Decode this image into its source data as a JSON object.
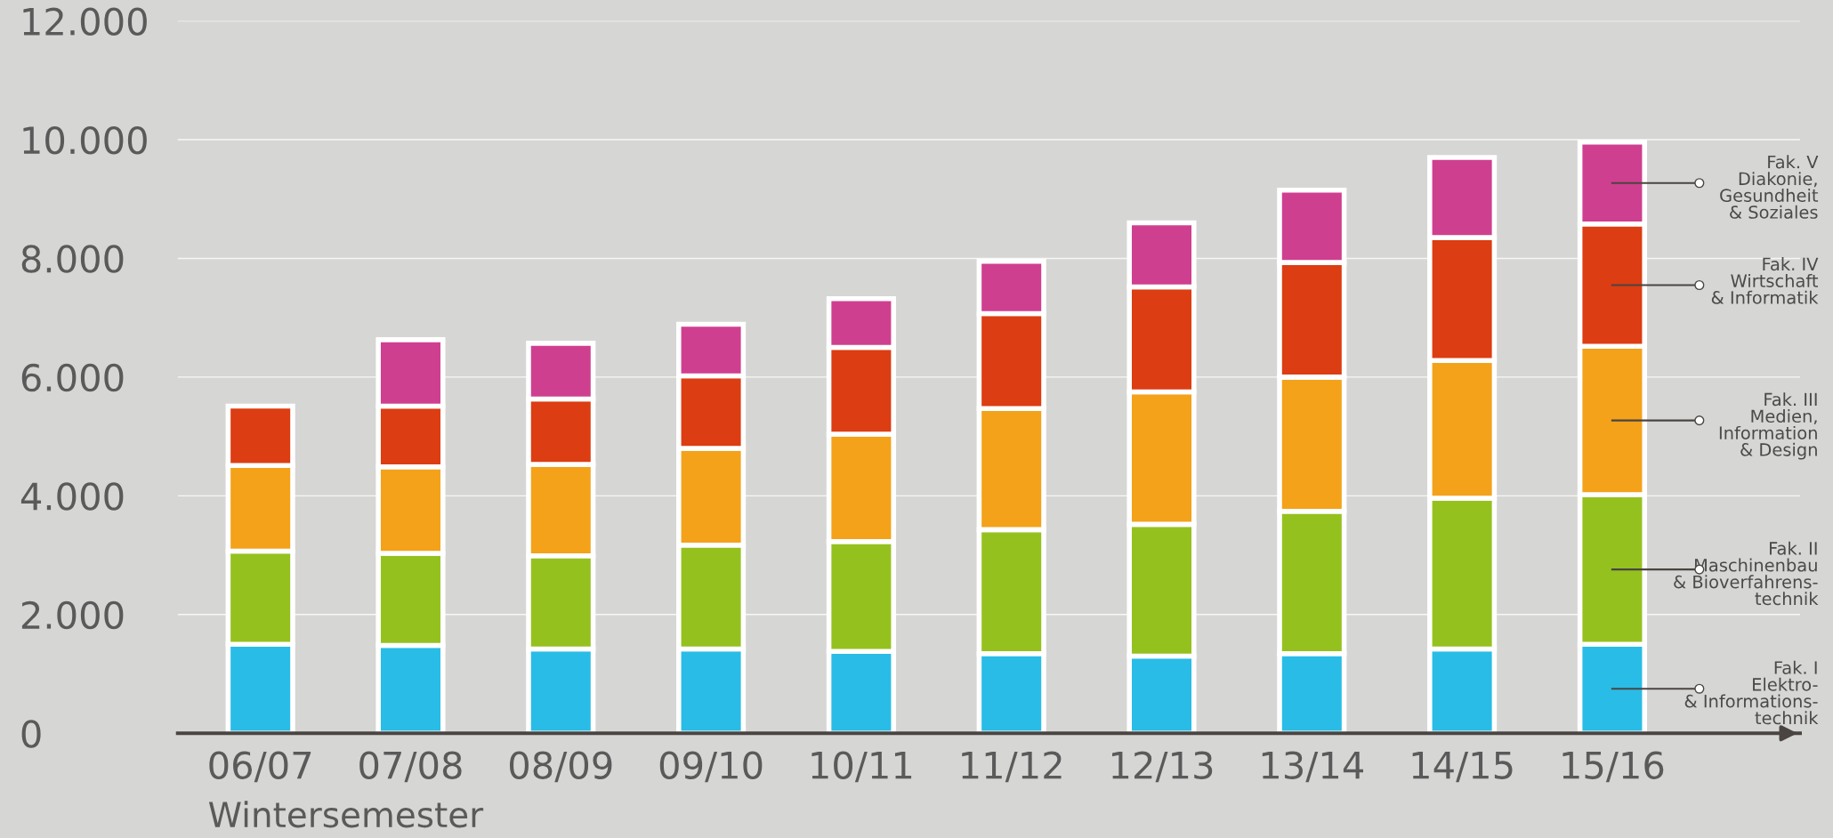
{
  "chart_data": {
    "type": "bar",
    "stacked": true,
    "categories": [
      "06/07",
      "07/08",
      "08/09",
      "09/10",
      "10/11",
      "11/12",
      "12/13",
      "13/14",
      "14/15",
      "15/16"
    ],
    "series": [
      {
        "name": "Fak. I\nElektro-\n& Informations-\ntechnik",
        "color": "#29bce6",
        "values": [
          1500,
          1480,
          1420,
          1420,
          1380,
          1340,
          1300,
          1340,
          1420,
          1500
        ]
      },
      {
        "name": "Fak. II\nMaschinenbau\n& Bioverfahrens-\ntechnik",
        "color": "#95c11f",
        "values": [
          1570,
          1550,
          1570,
          1750,
          1850,
          2090,
          2220,
          2400,
          2540,
          2520
        ]
      },
      {
        "name": "Fak. III\nMedien,\nInformation\n& Design",
        "color": "#f3a21a",
        "values": [
          1440,
          1460,
          1540,
          1630,
          1810,
          2040,
          2230,
          2260,
          2320,
          2500
        ]
      },
      {
        "name": "Fak. IV\nWirtschaft\n& Informatik",
        "color": "#dc3d12",
        "values": [
          1000,
          1020,
          1100,
          1220,
          1460,
          1600,
          1770,
          1930,
          2070,
          2060
        ]
      },
      {
        "name": "Fak. V\nDiakonie,\nGesundheit\n& Soziales",
        "color": "#cf3f8f",
        "values": [
          null,
          1120,
          940,
          870,
          820,
          880,
          1080,
          1220,
          1350,
          1380
        ]
      }
    ],
    "ylim": [
      0,
      12000
    ],
    "yticks": [
      {
        "value": 0,
        "label": "0"
      },
      {
        "value": 2000,
        "label": "2.000"
      },
      {
        "value": 4000,
        "label": "4.000"
      },
      {
        "value": 6000,
        "label": "6.000"
      },
      {
        "value": 8000,
        "label": "8.000"
      },
      {
        "value": 10000,
        "label": "10.000"
      },
      {
        "value": 12000,
        "label": "12.000"
      }
    ],
    "grid": "y",
    "annotations": [
      "Wintersemester"
    ]
  }
}
